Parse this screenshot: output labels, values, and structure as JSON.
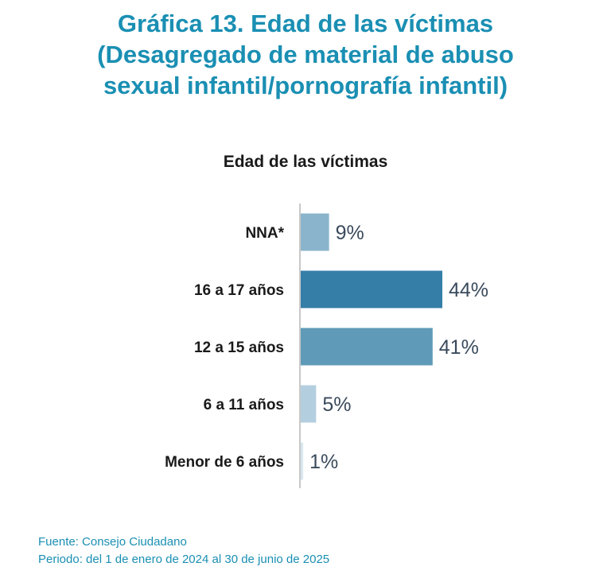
{
  "title_lines": [
    "Gráfica 13. Edad de las víctimas",
    "(Desagregado de material de abuso",
    "sexual infantil/pornografía infantil)"
  ],
  "footer": {
    "source": "Fuente: Consejo Ciudadano",
    "period": "Periodo: del 1 de enero de 2024 al 30 de junio de 2025"
  },
  "chart_data": {
    "type": "bar",
    "orientation": "horizontal",
    "title": "Edad de las víctimas",
    "categories": [
      "NNA*",
      "16 a 17 años",
      "12 a 15 años",
      "6 a 11 años",
      "Menor de 6 años"
    ],
    "values": [
      9,
      44,
      41,
      5,
      1
    ],
    "value_labels": [
      "9%",
      "44%",
      "41%",
      "5%",
      "1%"
    ],
    "unit": "%",
    "colors": [
      "#8ab4cc",
      "#357ea8",
      "#5f9ab8",
      "#b3cfdf",
      "#d9e6ee"
    ],
    "axis_color": "#c8c8c8",
    "grid": false,
    "legend": "none"
  }
}
